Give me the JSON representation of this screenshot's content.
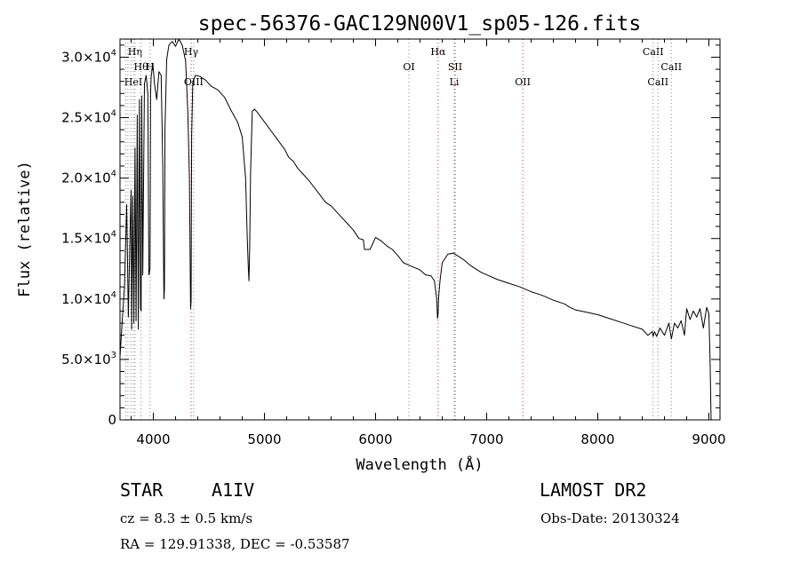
{
  "chart_data": {
    "type": "line",
    "title": "spec-56376-GAC129N00V1_sp05-126.fits",
    "xlabel": "Wavelength (Å)",
    "ylabel": "Flux (relative)",
    "xlim": [
      3700,
      9100
    ],
    "ylim": [
      0,
      31500
    ],
    "xticks": [
      {
        "value": 4000,
        "label": "4000"
      },
      {
        "value": 5000,
        "label": "5000"
      },
      {
        "value": 6000,
        "label": "6000"
      },
      {
        "value": 7000,
        "label": "7000"
      },
      {
        "value": 8000,
        "label": "8000"
      },
      {
        "value": 9000,
        "label": "9000"
      }
    ],
    "yticks": [
      {
        "value": 0,
        "mant": "0",
        "exp": ""
      },
      {
        "value": 5000,
        "mant": "5.0×10",
        "exp": "3"
      },
      {
        "value": 10000,
        "mant": "1.0×10",
        "exp": "4"
      },
      {
        "value": 15000,
        "mant": "1.5×10",
        "exp": "4"
      },
      {
        "value": 20000,
        "mant": "2.0×10",
        "exp": "4"
      },
      {
        "value": 25000,
        "mant": "2.5×10",
        "exp": "4"
      },
      {
        "value": 30000,
        "mant": "3.0×10",
        "exp": "4"
      }
    ],
    "lines": [
      {
        "wave": 3750,
        "label": "",
        "color": "#888888"
      },
      {
        "wave": 3771,
        "label": "",
        "color": "#888888"
      },
      {
        "wave": 3798,
        "label": "",
        "color": "#888888"
      },
      {
        "wave": 3835,
        "label": "Hη",
        "color": "#888888",
        "row": 0
      },
      {
        "wave": 3889,
        "label": "Hθ",
        "color": "#888888",
        "row": 1
      },
      {
        "wave": 3820,
        "label": "HeI",
        "color": "#888888",
        "row": 2
      },
      {
        "wave": 3970,
        "label": "H",
        "color": "#888888",
        "row": 1
      },
      {
        "wave": 4340,
        "label": "Hγ",
        "color": "#cc3333",
        "row": 0
      },
      {
        "wave": 4363,
        "label": "OIII",
        "color": "#888888",
        "row": 2
      },
      {
        "wave": 6300,
        "label": "OI",
        "color": "#888888",
        "row": 1
      },
      {
        "wave": 6563,
        "label": "Hα",
        "color": "#cc3333",
        "row": 0
      },
      {
        "wave": 6716,
        "label": "SII",
        "color": "#cc3333",
        "row": 1
      },
      {
        "wave": 6708,
        "label": "Li",
        "color": "#888888",
        "row": 2
      },
      {
        "wave": 7325,
        "label": "OII",
        "color": "#cc3333",
        "row": 2
      },
      {
        "wave": 8498,
        "label": "CaII",
        "color": "#888888",
        "row": 0
      },
      {
        "wave": 8542,
        "label": "CaII",
        "color": "#888888",
        "row": 2
      },
      {
        "wave": 8662,
        "label": "CaII",
        "color": "#888888",
        "row": 1
      }
    ],
    "series": [
      {
        "x": [
          3700,
          3720,
          3740,
          3760,
          3775,
          3790,
          3800,
          3805,
          3815,
          3825,
          3835,
          3845,
          3855,
          3865,
          3875,
          3885,
          3890,
          3895,
          3905,
          3920,
          3935,
          3950,
          3960,
          3970,
          3975,
          3980,
          3995,
          4010,
          4030,
          4050,
          4070,
          4085,
          4095,
          4100,
          4105,
          4120,
          4140,
          4170,
          4200,
          4230,
          4260,
          4290,
          4310,
          4325,
          4335,
          4340,
          4345,
          4355,
          4380,
          4420,
          4470,
          4520,
          4580,
          4640,
          4700,
          4760,
          4800,
          4830,
          4845,
          4855,
          4861,
          4867,
          4875,
          4890,
          4910,
          4940,
          4980,
          5020,
          5060,
          5100,
          5140,
          5180,
          5220,
          5260,
          5300,
          5350,
          5400,
          5450,
          5500,
          5550,
          5600,
          5650,
          5700,
          5750,
          5800,
          5850,
          5890,
          5900,
          5950,
          6000,
          6050,
          6100,
          6150,
          6200,
          6250,
          6300,
          6350,
          6400,
          6450,
          6500,
          6530,
          6550,
          6558,
          6563,
          6568,
          6580,
          6600,
          6650,
          6700,
          6750,
          6800,
          6850,
          6900,
          6950,
          7000,
          7100,
          7200,
          7300,
          7400,
          7500,
          7600,
          7700,
          7750,
          7800,
          7900,
          8000,
          8100,
          8200,
          8300,
          8400,
          8450,
          8490,
          8498,
          8510,
          8530,
          8542,
          8560,
          8600,
          8640,
          8662,
          8690,
          8720,
          8750,
          8780,
          8800,
          8830,
          8860,
          8890,
          8920,
          8950,
          8980,
          9000,
          9010,
          9020
        ],
        "y": [
          5200,
          8200,
          11000,
          17800,
          8500,
          15500,
          19000,
          7500,
          18500,
          8000,
          22500,
          8200,
          25200,
          7500,
          26500,
          9200,
          9000,
          26800,
          12000,
          27800,
          28500,
          27000,
          12000,
          12500,
          27000,
          28300,
          29500,
          27800,
          26500,
          28800,
          28500,
          21000,
          10000,
          10800,
          24000,
          29800,
          31000,
          31300,
          30900,
          31500,
          31000,
          29700,
          25500,
          20000,
          9200,
          9800,
          23500,
          28000,
          28500,
          28400,
          28100,
          27600,
          27300,
          26700,
          25600,
          24600,
          23400,
          20000,
          15200,
          12500,
          11500,
          14200,
          20500,
          25500,
          25700,
          25400,
          24900,
          24400,
          23900,
          23400,
          22900,
          22400,
          21700,
          21400,
          20800,
          20300,
          19800,
          19200,
          18600,
          18000,
          17700,
          17200,
          16700,
          16200,
          15700,
          15000,
          14900,
          14100,
          14100,
          15100,
          14800,
          14400,
          14100,
          13600,
          13000,
          12800,
          12600,
          12400,
          12000,
          11900,
          11500,
          10000,
          8400,
          8800,
          10200,
          11500,
          13000,
          13700,
          13800,
          13500,
          13200,
          12800,
          12500,
          12200,
          12000,
          11600,
          11300,
          11000,
          10600,
          10300,
          9900,
          9600,
          9300,
          9100,
          8900,
          8700,
          8400,
          8100,
          7800,
          7500,
          7000,
          7300,
          6900,
          7300,
          6900,
          7200,
          7600,
          7000,
          8000,
          6700,
          8000,
          7600,
          8200,
          7000,
          9200,
          8300,
          9000,
          8500,
          9200,
          7600,
          9300,
          8800,
          5000,
          0
        ]
      }
    ]
  },
  "info": {
    "object_type": "STAR",
    "object_class": "A1IV",
    "survey": "LAMOST DR2",
    "cz": "cz = 8.3 ± 0.5 km/s",
    "obs_date": "Obs-Date: 20130324",
    "ra_dec": "RA = 129.91338, DEC =  -0.53587"
  }
}
